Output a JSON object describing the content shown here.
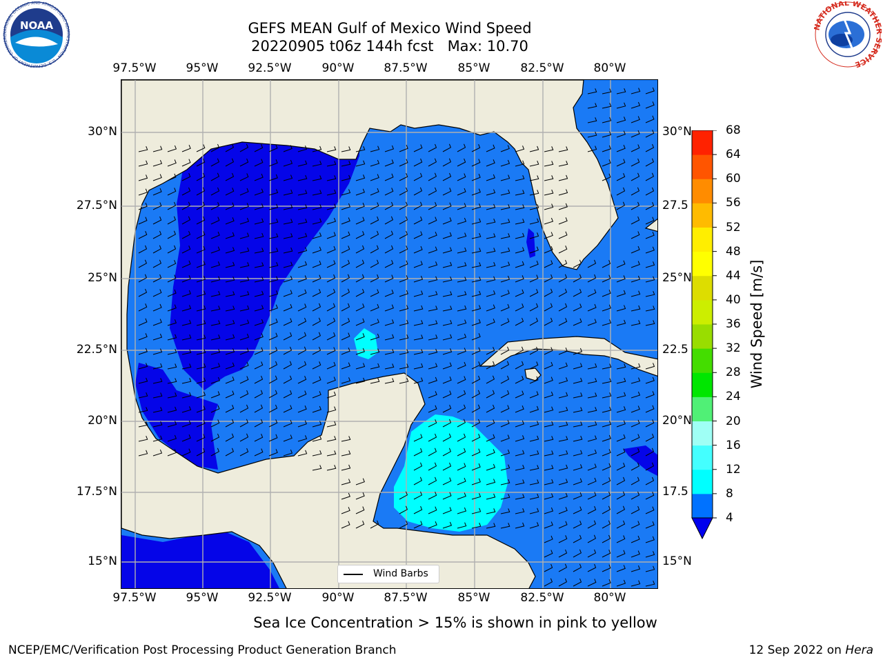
{
  "title_line1": "GEFS MEAN Gulf of Mexico Wind Speed",
  "title_line2": "20220905 t06z 144h fcst   Max: 10.70",
  "lon_ticks": [
    "97.5°W",
    "95°W",
    "92.5°W",
    "90°W",
    "87.5°W",
    "85°W",
    "82.5°W",
    "80°W"
  ],
  "lat_ticks": [
    "30°N",
    "27.5°N",
    "25°N",
    "22.5°N",
    "20°N",
    "17.5°N",
    "15°N"
  ],
  "lat_ticks_right": [
    "30°N",
    "27.5",
    "25°N",
    "22.5",
    "20°N",
    "17.5",
    "15°N"
  ],
  "legend_label": "Wind Barbs",
  "colorbar": {
    "label": "Wind Speed [m/s]",
    "ticks": [
      "4",
      "8",
      "12",
      "16",
      "20",
      "24",
      "28",
      "32",
      "36",
      "40",
      "44",
      "48",
      "52",
      "56",
      "60",
      "64",
      "68"
    ],
    "colors": [
      "#0072ff",
      "#00ffff",
      "#44ffff",
      "#9ffff5",
      "#50f076",
      "#00e600",
      "#44dd00",
      "#99dd00",
      "#ccee00",
      "#dddd00",
      "#ffff00",
      "#ffee00",
      "#ffbb00",
      "#ff8c00",
      "#ff5500",
      "#ff2200",
      "#ff0000"
    ],
    "under_color": "#0000ee"
  },
  "map_colors": {
    "land": "#eeecdc",
    "wind_4_8": "#1a7af5",
    "wind_under4": "#0505e8",
    "wind_8_12": "#00ffff",
    "wind_12_16": "#44ffff"
  },
  "note": "Sea Ice Concentration > 15% is shown in pink to yellow",
  "footer_left": "NCEP/EMC/Verification Post Processing Product Generation Branch",
  "footer_right_date": "12 Sep 2022 on ",
  "footer_right_host": "Hera",
  "logo_left_text": "NOAA",
  "logo_left_ring": "NATIONAL OCEANIC AND ATMOSPHERIC ADMINISTRATION · U.S. DEPARTMENT OF COMMERCE",
  "logo_right_ring": "NATIONAL WEATHER SERVICE"
}
